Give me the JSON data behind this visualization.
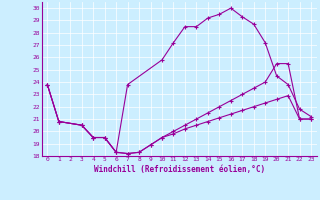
{
  "xlabel": "Windchill (Refroidissement éolien,°C)",
  "bg_color": "#cceeff",
  "line_color": "#990099",
  "xlim": [
    -0.5,
    23.5
  ],
  "ylim": [
    18,
    30.5
  ],
  "xticks": [
    0,
    1,
    2,
    3,
    4,
    5,
    6,
    7,
    8,
    9,
    10,
    11,
    12,
    13,
    14,
    15,
    16,
    17,
    18,
    19,
    20,
    21,
    22,
    23
  ],
  "yticks": [
    18,
    19,
    20,
    21,
    22,
    23,
    24,
    25,
    26,
    27,
    28,
    29,
    30
  ],
  "line1_x": [
    0,
    1,
    3,
    4,
    5,
    6,
    7,
    8,
    9,
    10,
    11,
    12,
    13,
    14,
    15,
    16,
    17,
    18,
    19,
    20,
    21,
    22,
    23
  ],
  "line1_y": [
    23.8,
    20.8,
    20.5,
    19.5,
    19.5,
    18.3,
    18.2,
    18.3,
    18.9,
    19.5,
    19.8,
    20.2,
    20.5,
    20.8,
    21.1,
    21.4,
    21.7,
    22.0,
    22.3,
    22.6,
    22.9,
    21.0,
    21.0
  ],
  "line2_x": [
    0,
    1,
    3,
    4,
    5,
    6,
    7,
    10,
    11,
    12,
    13,
    14,
    15,
    16,
    17,
    18,
    19,
    20,
    21,
    22,
    23
  ],
  "line2_y": [
    23.8,
    20.8,
    20.5,
    19.5,
    19.5,
    18.3,
    23.8,
    25.8,
    27.2,
    28.5,
    28.5,
    29.2,
    29.5,
    30.0,
    29.3,
    28.7,
    27.2,
    24.5,
    23.8,
    21.8,
    21.2
  ],
  "line3_x": [
    0,
    1,
    3,
    4,
    5,
    6,
    7,
    8,
    9,
    10,
    11,
    12,
    13,
    14,
    15,
    16,
    17,
    18,
    19,
    20,
    21,
    22,
    23
  ],
  "line3_y": [
    23.8,
    20.8,
    20.5,
    19.5,
    19.5,
    18.3,
    18.2,
    18.3,
    18.9,
    19.5,
    20.0,
    20.5,
    21.0,
    21.5,
    22.0,
    22.5,
    23.0,
    23.5,
    24.0,
    25.5,
    25.5,
    21.0,
    21.0
  ]
}
